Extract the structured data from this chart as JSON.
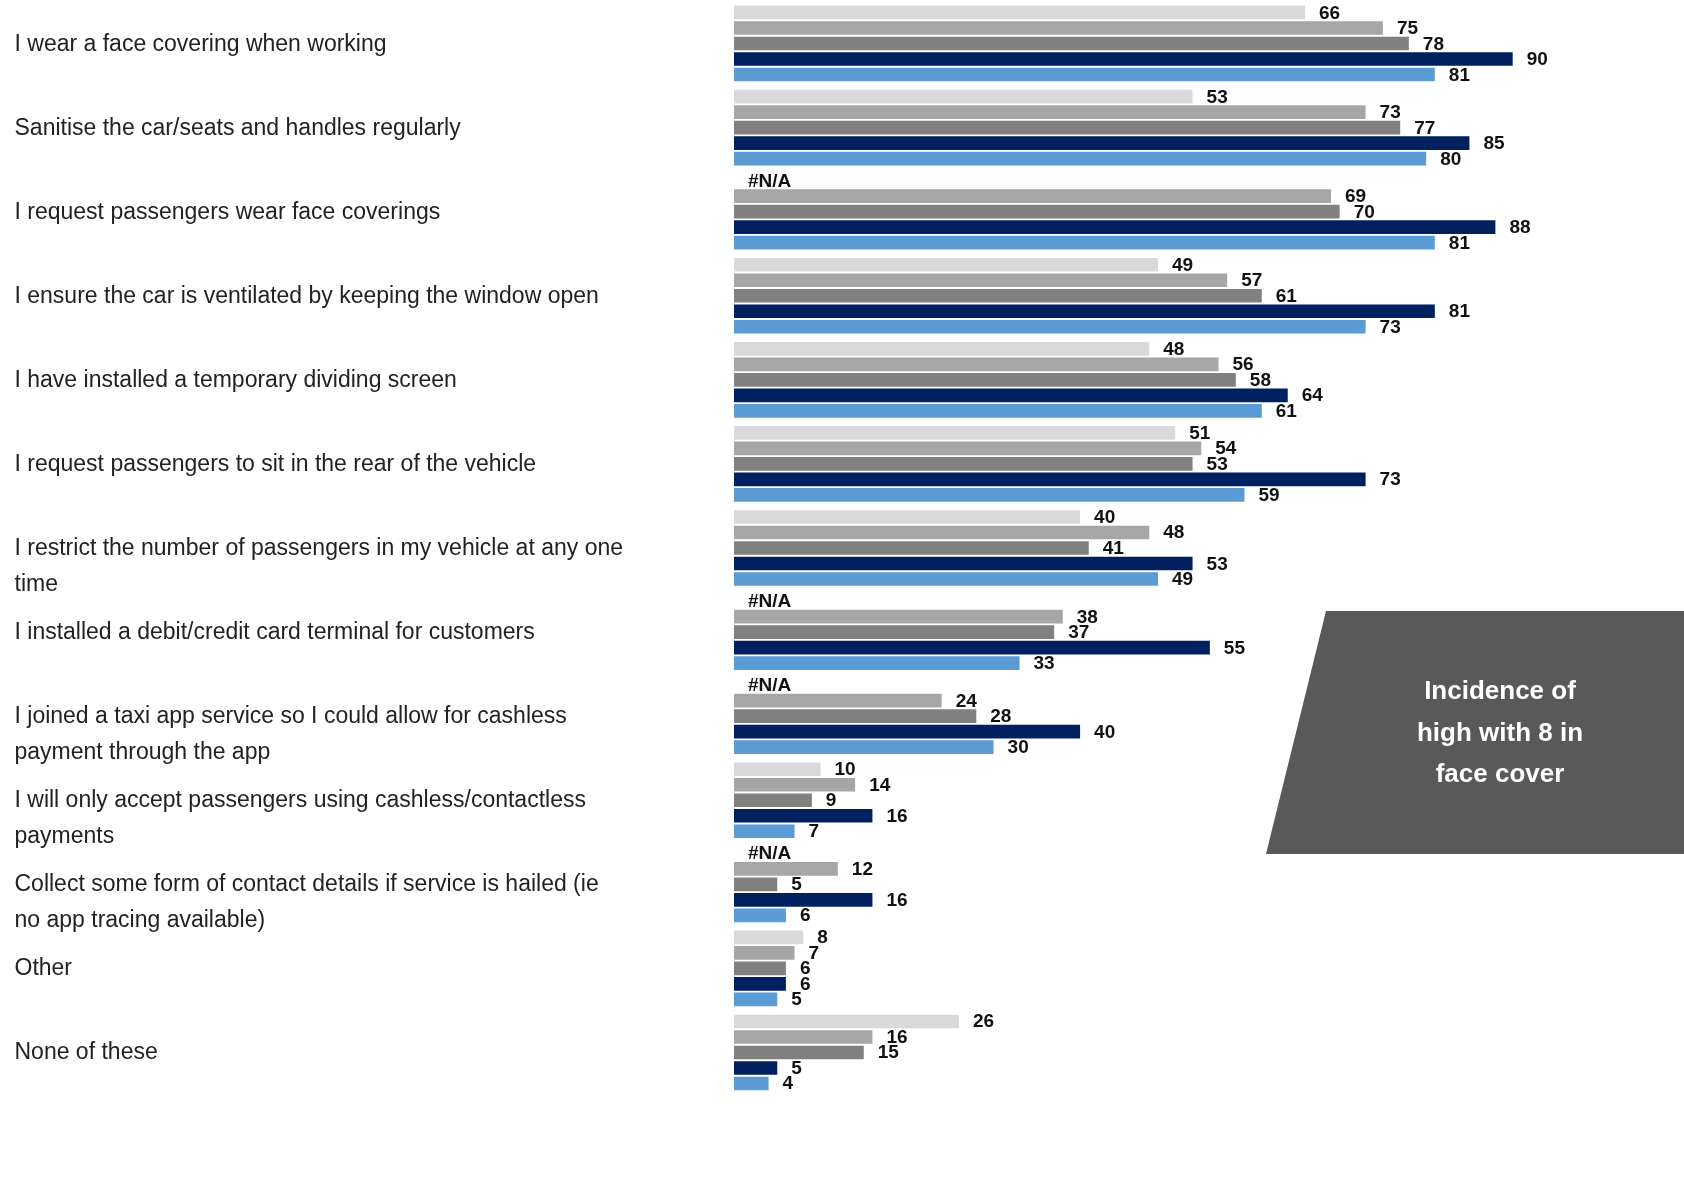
{
  "chart_data": {
    "type": "bar",
    "orientation": "horizontal",
    "categories": [
      "I wear a face covering when working",
      "Sanitise the car/seats and handles regularly",
      "I request passengers wear face coverings",
      "I ensure the car is ventilated by keeping the window open",
      "I have installed a temporary dividing screen",
      "I request passengers to sit in the rear of the vehicle",
      "I restrict the number of passengers in my vehicle at any one time",
      "I installed a debit/credit card terminal for customers",
      "I joined a taxi app service so I could allow for cashless payment through the app",
      "I will only accept passengers using cashless/contactless payments",
      "Collect some form of contact details if service is hailed (ie no app tracing available)",
      "Other",
      "None of these"
    ],
    "series": [
      {
        "color": "#d9d9d9",
        "values": [
          66,
          53,
          null,
          49,
          48,
          51,
          40,
          null,
          null,
          10,
          null,
          8,
          26
        ],
        "value_labels": [
          "66",
          "53",
          "#N/A",
          "49",
          "48",
          "51",
          "40",
          "#N/A",
          "#N/A",
          "10",
          "#N/A",
          "8",
          "26"
        ]
      },
      {
        "color": "#a6a6a6",
        "values": [
          75,
          73,
          69,
          57,
          56,
          54,
          48,
          38,
          24,
          14,
          12,
          7,
          16
        ],
        "value_labels": [
          "75",
          "73",
          "69",
          "57",
          "56",
          "54",
          "48",
          "38",
          "24",
          "14",
          "12",
          "7",
          "16"
        ]
      },
      {
        "color": "#808080",
        "values": [
          78,
          77,
          70,
          61,
          58,
          53,
          41,
          37,
          28,
          9,
          5,
          6,
          15
        ],
        "value_labels": [
          "78",
          "77",
          "70",
          "61",
          "58",
          "53",
          "41",
          "37",
          "28",
          "9",
          "5",
          "6",
          "15"
        ]
      },
      {
        "color": "#002060",
        "values": [
          90,
          85,
          88,
          81,
          64,
          73,
          53,
          55,
          40,
          16,
          16,
          6,
          5
        ],
        "value_labels": [
          "90",
          "85",
          "88",
          "81",
          "64",
          "73",
          "53",
          "55",
          "40",
          "16",
          "16",
          "6",
          "5"
        ]
      },
      {
        "color": "#5b9bd5",
        "values": [
          81,
          80,
          81,
          73,
          61,
          59,
          49,
          33,
          30,
          7,
          6,
          5,
          4
        ],
        "value_labels": [
          "81",
          "80",
          "81",
          "73",
          "61",
          "59",
          "49",
          "33",
          "30",
          "7",
          "6",
          "5",
          "4"
        ]
      }
    ],
    "annotations": [
      "Incidence of\nhigh with 8 in\nface cover"
    ]
  }
}
